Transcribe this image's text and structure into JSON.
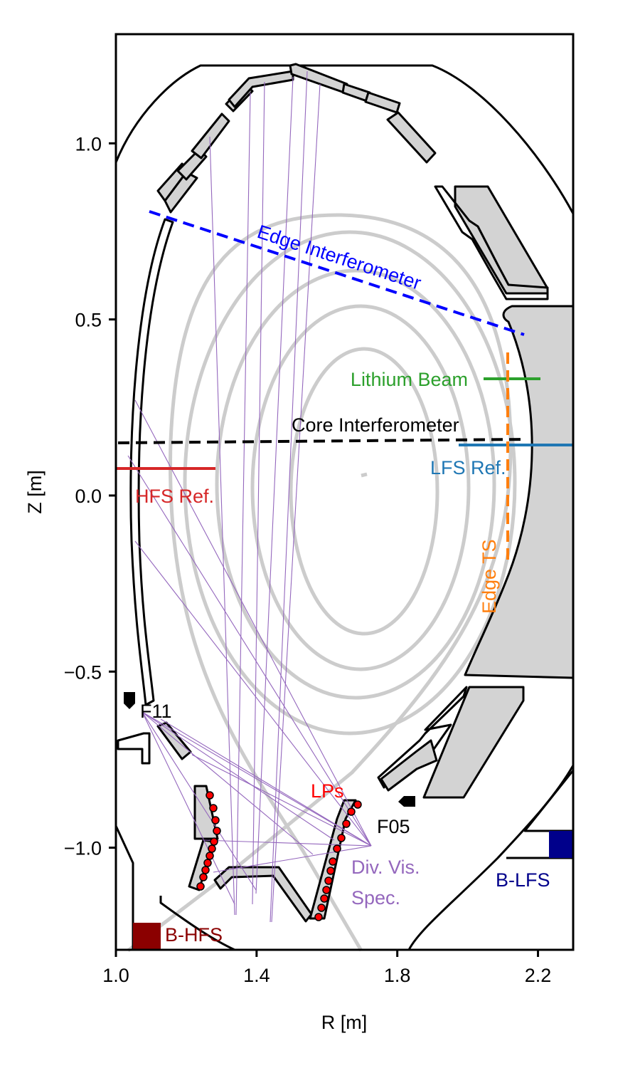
{
  "axes": {
    "xlabel": "R [m]",
    "ylabel": "Z [m]",
    "xlim": [
      1.0,
      2.3
    ],
    "ylim": [
      -1.29,
      1.31
    ],
    "xticks": [
      {
        "value": 1.0,
        "label": "1.0"
      },
      {
        "value": 1.4,
        "label": "1.4"
      },
      {
        "value": 1.8,
        "label": "1.8"
      },
      {
        "value": 2.2,
        "label": "2.2"
      }
    ],
    "yticks": [
      {
        "value": 1.0,
        "label": "1.0"
      },
      {
        "value": 0.5,
        "label": "0.5"
      },
      {
        "value": 0.0,
        "label": "0.0"
      },
      {
        "value": -0.5,
        "label": "−0.5"
      },
      {
        "value": -1.0,
        "label": "−1.0"
      }
    ]
  },
  "labels": {
    "edge_interferometer": "Edge Interferometer",
    "lithium_beam": "Lithium Beam",
    "core_interferometer": "Core Interferometer",
    "lfs_ref": "LFS Ref.",
    "hfs_ref": "HFS Ref.",
    "edge_ts": "Edge TS",
    "f11": "F11",
    "f05": "F05",
    "lps": "LPs",
    "div_vis_spec_line1": "Div. Vis.",
    "div_vis_spec_line2": "Spec.",
    "b_lfs": "B-LFS",
    "b_hfs": "B-HFS"
  },
  "colors": {
    "edge_interferometer": "#0000ff",
    "lithium_beam": "#2ca02c",
    "core_interferometer": "#000000",
    "lfs_ref": "#1f77b4",
    "hfs_ref": "#d62728",
    "edge_ts": "#ff7f0e",
    "lps": "#ff0000",
    "div_vis_spec": "#9467bd",
    "b_lfs": "#00008b",
    "b_hfs": "#8b0000",
    "flux_surfaces": "#cccccc",
    "tiles": "#d3d3d3"
  }
}
